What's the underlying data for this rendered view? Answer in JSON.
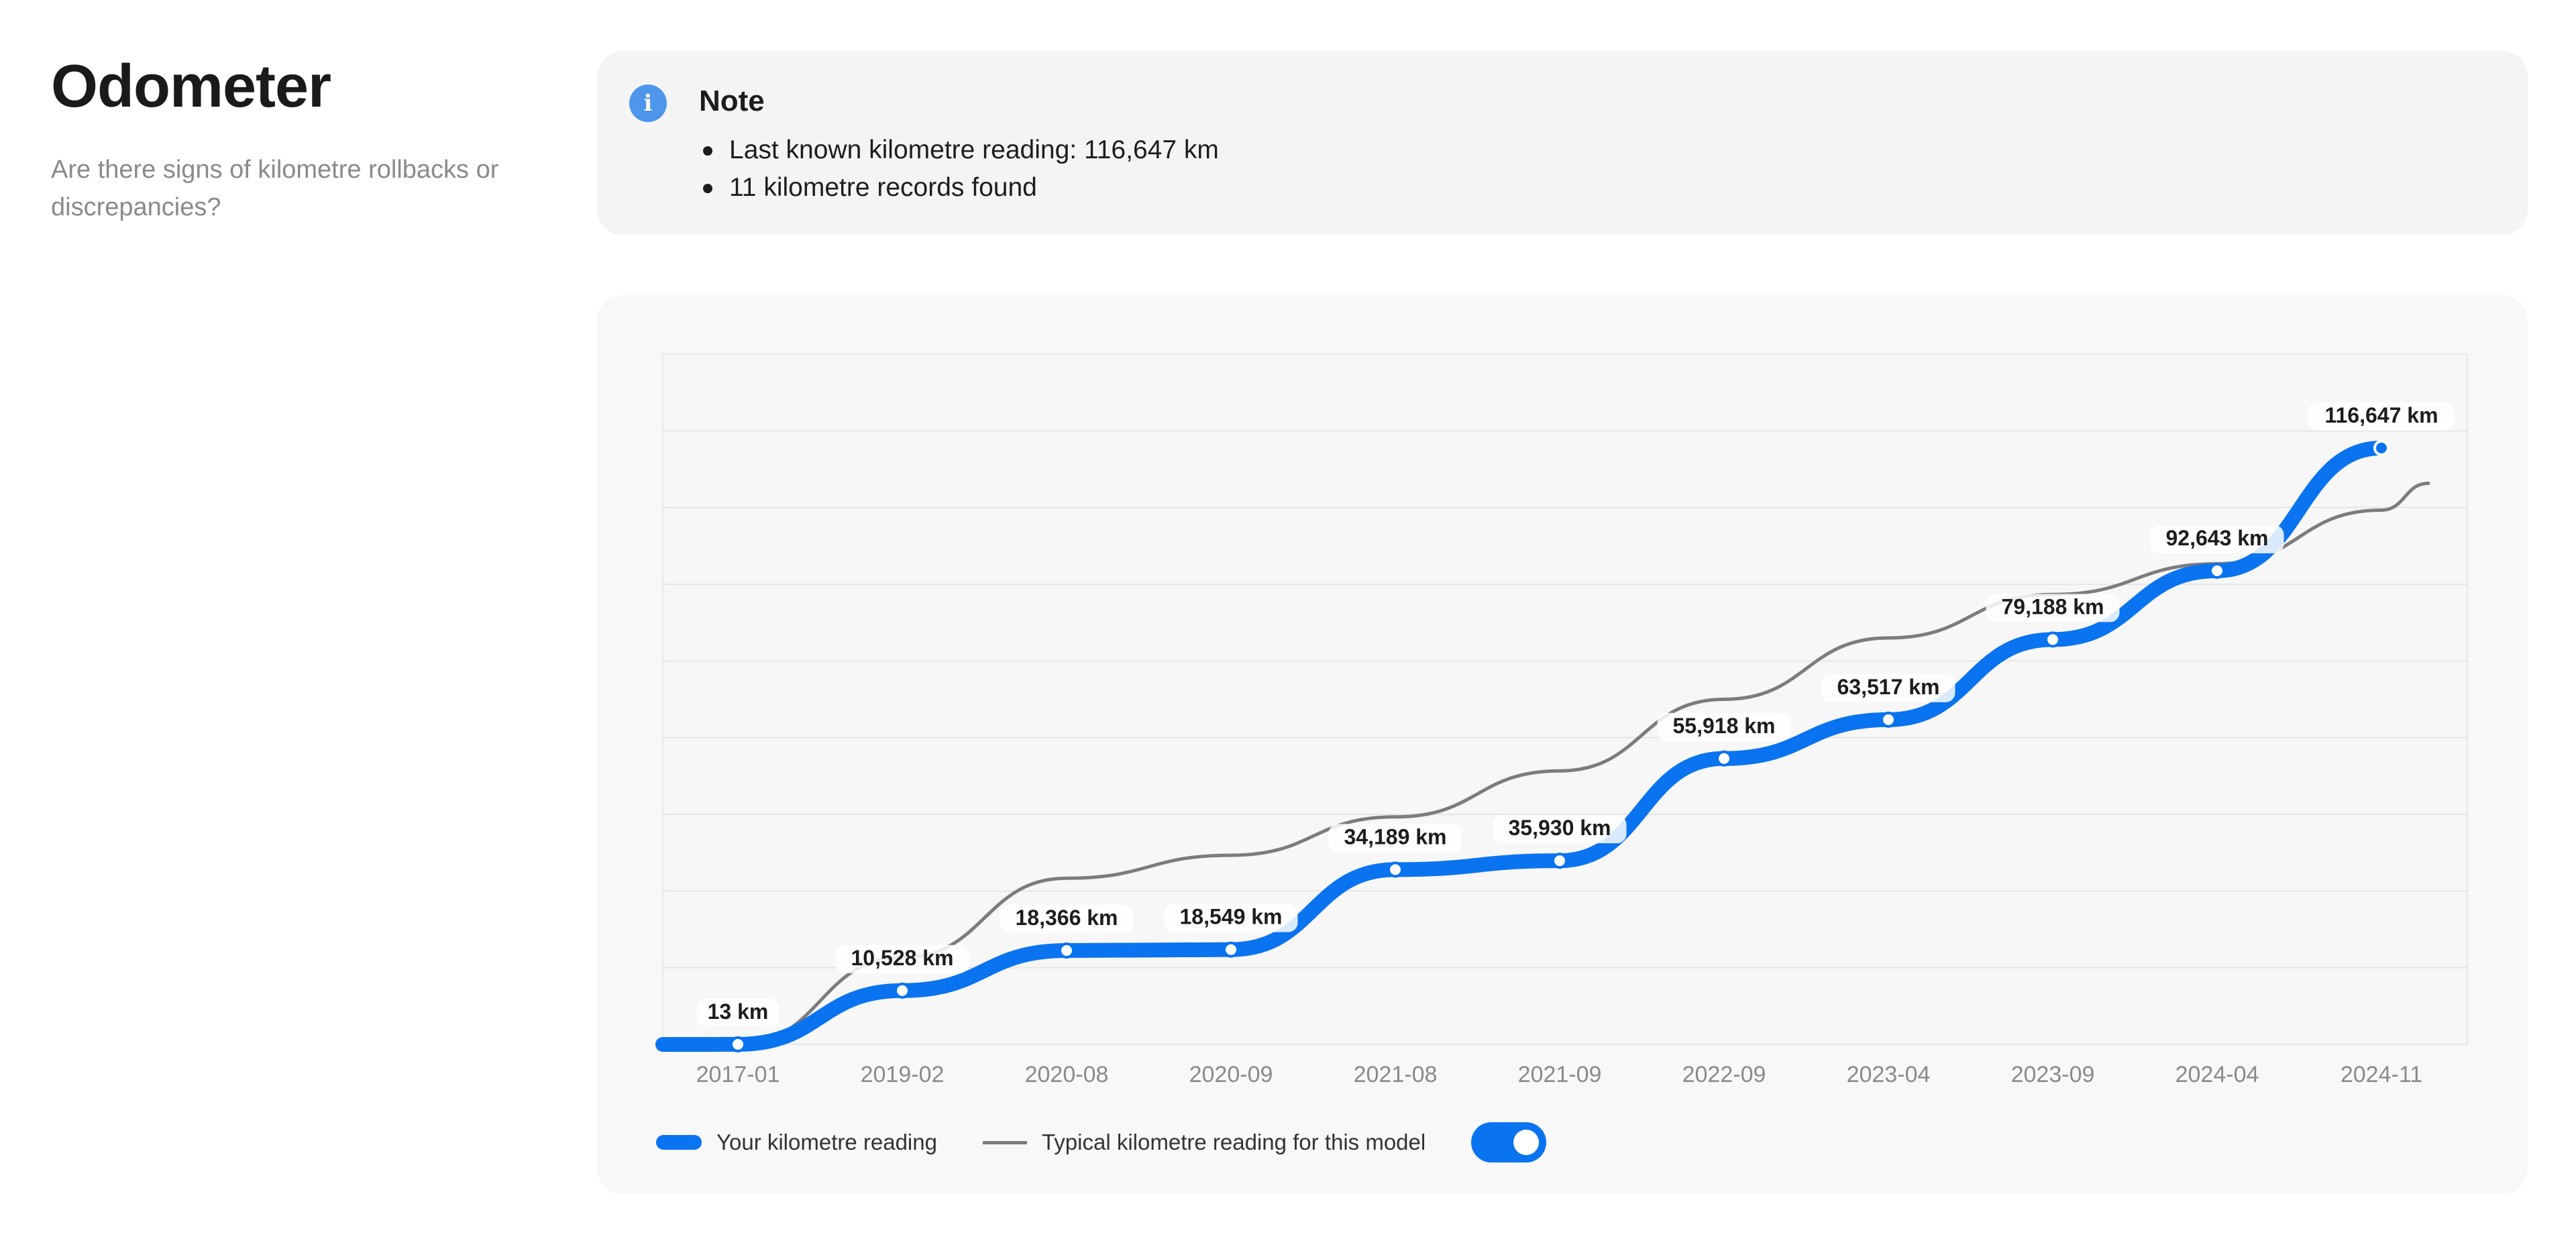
{
  "header": {
    "title": "Odometer",
    "subtitle": "Are there signs of kilometre rollbacks or discrepancies?"
  },
  "note": {
    "icon": "info-icon",
    "title": "Note",
    "items": [
      "Last known kilometre reading: 116,647 km",
      "11 kilometre records found"
    ]
  },
  "legend": {
    "your_reading": "Your kilometre reading",
    "typical_reading": "Typical kilometre reading for this model",
    "toggle_on": true
  },
  "colors": {
    "your_reading": "#0a73f0",
    "typical_reading": "#7c7c7c",
    "info_icon": "#4e95ec"
  },
  "chart_data": {
    "type": "line",
    "categories": [
      "2017-01",
      "2019-02",
      "2020-08",
      "2020-09",
      "2021-08",
      "2021-09",
      "2022-09",
      "2023-04",
      "2023-09",
      "2024-04",
      "2024-11"
    ],
    "ylim": [
      0,
      135000
    ],
    "grid": true,
    "legend_position": "bottom-left",
    "series": [
      {
        "name": "Your kilometre reading",
        "values": [
          13,
          10528,
          18366,
          18549,
          34189,
          35930,
          55918,
          63517,
          79188,
          92643,
          116647
        ],
        "labels": [
          "13 km",
          "10,528 km",
          "18,366 km",
          "18,549 km",
          "34,189 km",
          "35,930 km",
          "55,918 km",
          "63,517 km",
          "79,188 km",
          "92,643 km",
          "116,647 km"
        ]
      },
      {
        "name": "Typical kilometre reading for this model",
        "values": [
          0,
          17000,
          32500,
          37000,
          44500,
          53500,
          67500,
          79500,
          88000,
          94000,
          104500
        ]
      }
    ]
  }
}
